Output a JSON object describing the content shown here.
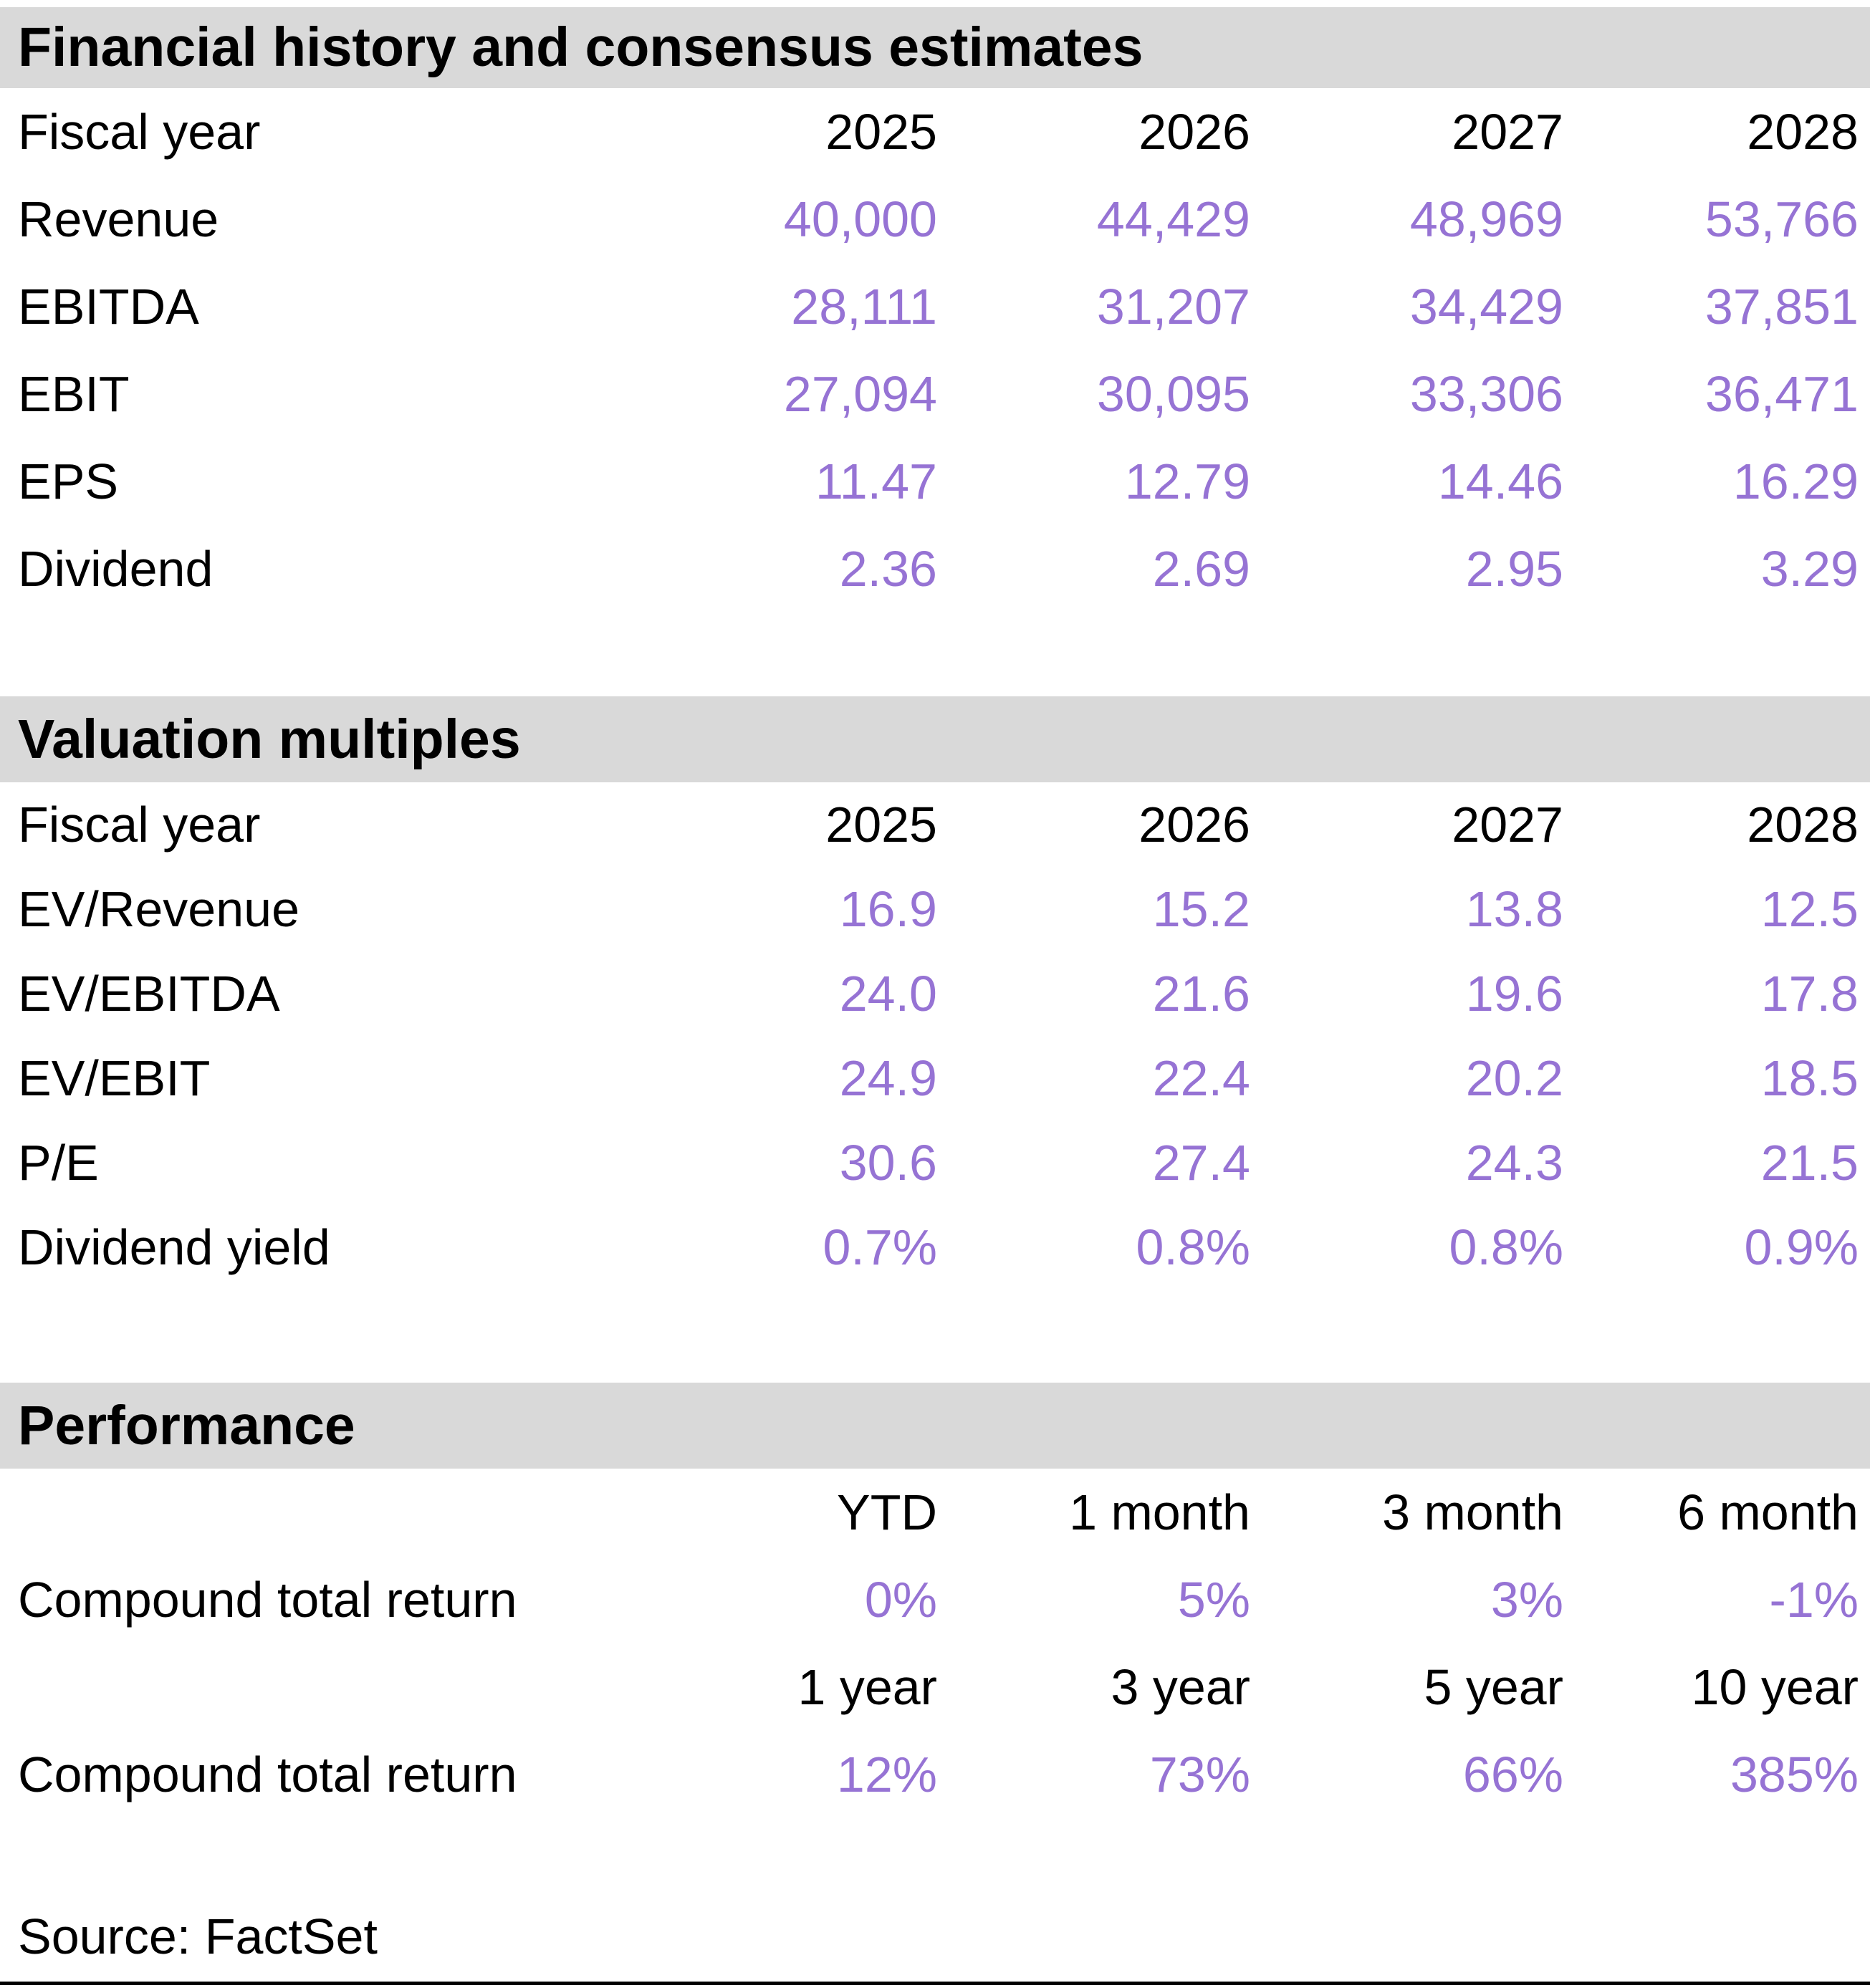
{
  "colors": {
    "accent_purple": "#9673d4",
    "section_bar_gray": "#d9d9d9",
    "text_black": "#000000"
  },
  "sections": [
    {
      "title": "Financial history and consensus estimates",
      "header_row": {
        "label": "Fiscal year",
        "cols": [
          "2025",
          "2026",
          "2027",
          "2028"
        ]
      },
      "rows": [
        {
          "label": "Revenue",
          "values": [
            "40,000",
            "44,429",
            "48,969",
            "53,766"
          ]
        },
        {
          "label": "EBITDA",
          "values": [
            "28,111",
            "31,207",
            "34,429",
            "37,851"
          ]
        },
        {
          "label": "EBIT",
          "values": [
            "27,094",
            "30,095",
            "33,306",
            "36,471"
          ]
        },
        {
          "label": "EPS",
          "values": [
            "11.47",
            "12.79",
            "14.46",
            "16.29"
          ]
        },
        {
          "label": "Dividend",
          "values": [
            "2.36",
            "2.69",
            "2.95",
            "3.29"
          ]
        }
      ]
    },
    {
      "title": "Valuation multiples",
      "header_row": {
        "label": "Fiscal year",
        "cols": [
          "2025",
          "2026",
          "2027",
          "2028"
        ]
      },
      "rows": [
        {
          "label": "EV/Revenue",
          "values": [
            "16.9",
            "15.2",
            "13.8",
            "12.5"
          ]
        },
        {
          "label": "EV/EBITDA",
          "values": [
            "24.0",
            "21.6",
            "19.6",
            "17.8"
          ]
        },
        {
          "label": "EV/EBIT",
          "values": [
            "24.9",
            "22.4",
            "20.2",
            "18.5"
          ]
        },
        {
          "label": "P/E",
          "values": [
            "30.6",
            "27.4",
            "24.3",
            "21.5"
          ]
        },
        {
          "label": "Dividend yield",
          "values": [
            "0.7%",
            "0.8%",
            "0.8%",
            "0.9%"
          ]
        }
      ]
    },
    {
      "title": "Performance",
      "groups": [
        {
          "header_cols": [
            "YTD",
            "1 month",
            "3 month",
            "6 month"
          ],
          "row": {
            "label": "Compound total return",
            "values": [
              "0%",
              "5%",
              "3%",
              "-1%"
            ]
          }
        },
        {
          "header_cols": [
            "1 year",
            "3 year",
            "5 year",
            "10 year"
          ],
          "row": {
            "label": "Compound total return",
            "values": [
              "12%",
              "73%",
              "66%",
              "385%"
            ]
          }
        }
      ]
    }
  ],
  "source": "Source: FactSet"
}
